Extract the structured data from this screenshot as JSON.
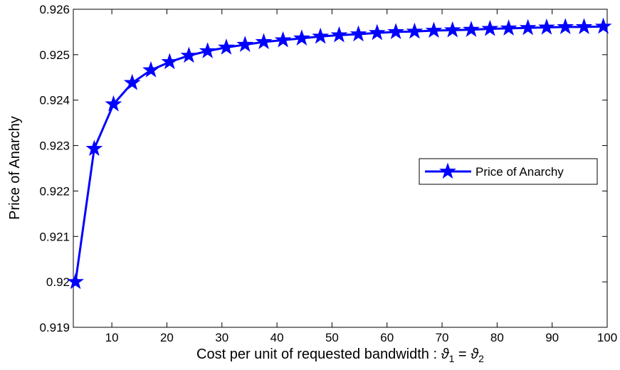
{
  "chart_data": {
    "type": "line",
    "title": "",
    "xlabel": "Cost per unit of requested bandwidth : ",
    "xlabel_symbol": "ϑ",
    "xlabel_sub1": "1",
    "xlabel_eq": " = ",
    "xlabel_sub2": "2",
    "ylabel": "Price of Anarchy",
    "xlim": [
      3,
      100
    ],
    "ylim": [
      0.919,
      0.926
    ],
    "x_ticks": [
      10,
      20,
      30,
      40,
      50,
      60,
      70,
      80,
      90,
      100
    ],
    "x_tick_labels": [
      "10",
      "20",
      "30",
      "40",
      "50",
      "60",
      "70",
      "80",
      "90",
      "100"
    ],
    "y_ticks": [
      0.919,
      0.92,
      0.921,
      0.922,
      0.923,
      0.924,
      0.925,
      0.926
    ],
    "y_tick_labels": [
      "0.919",
      "0.92",
      "0.921",
      "0.922",
      "0.923",
      "0.924",
      "0.925",
      "0.926"
    ],
    "grid": false,
    "legend_position": "right",
    "series": [
      {
        "name": "Price of Anarchy",
        "color": "#0000ff",
        "marker": "star",
        "x": [
          3.4,
          6.8,
          10.3,
          13.7,
          17.1,
          20.5,
          24.0,
          27.4,
          30.8,
          34.2,
          37.6,
          41.1,
          44.5,
          47.9,
          51.3,
          54.8,
          58.2,
          61.6,
          65.0,
          68.5,
          71.9,
          75.3,
          78.7,
          82.1,
          85.6,
          89.0,
          92.4,
          95.8,
          99.3
        ],
        "y": [
          0.92,
          0.92293,
          0.92391,
          0.92438,
          0.92466,
          0.92484,
          0.92498,
          0.92508,
          0.92516,
          0.92522,
          0.92528,
          0.92532,
          0.92536,
          0.9254,
          0.92543,
          0.92545,
          0.92548,
          0.9255,
          0.92551,
          0.92553,
          0.92554,
          0.92555,
          0.92557,
          0.92558,
          0.92559,
          0.9256,
          0.92561,
          0.92561,
          0.92562
        ]
      }
    ]
  }
}
